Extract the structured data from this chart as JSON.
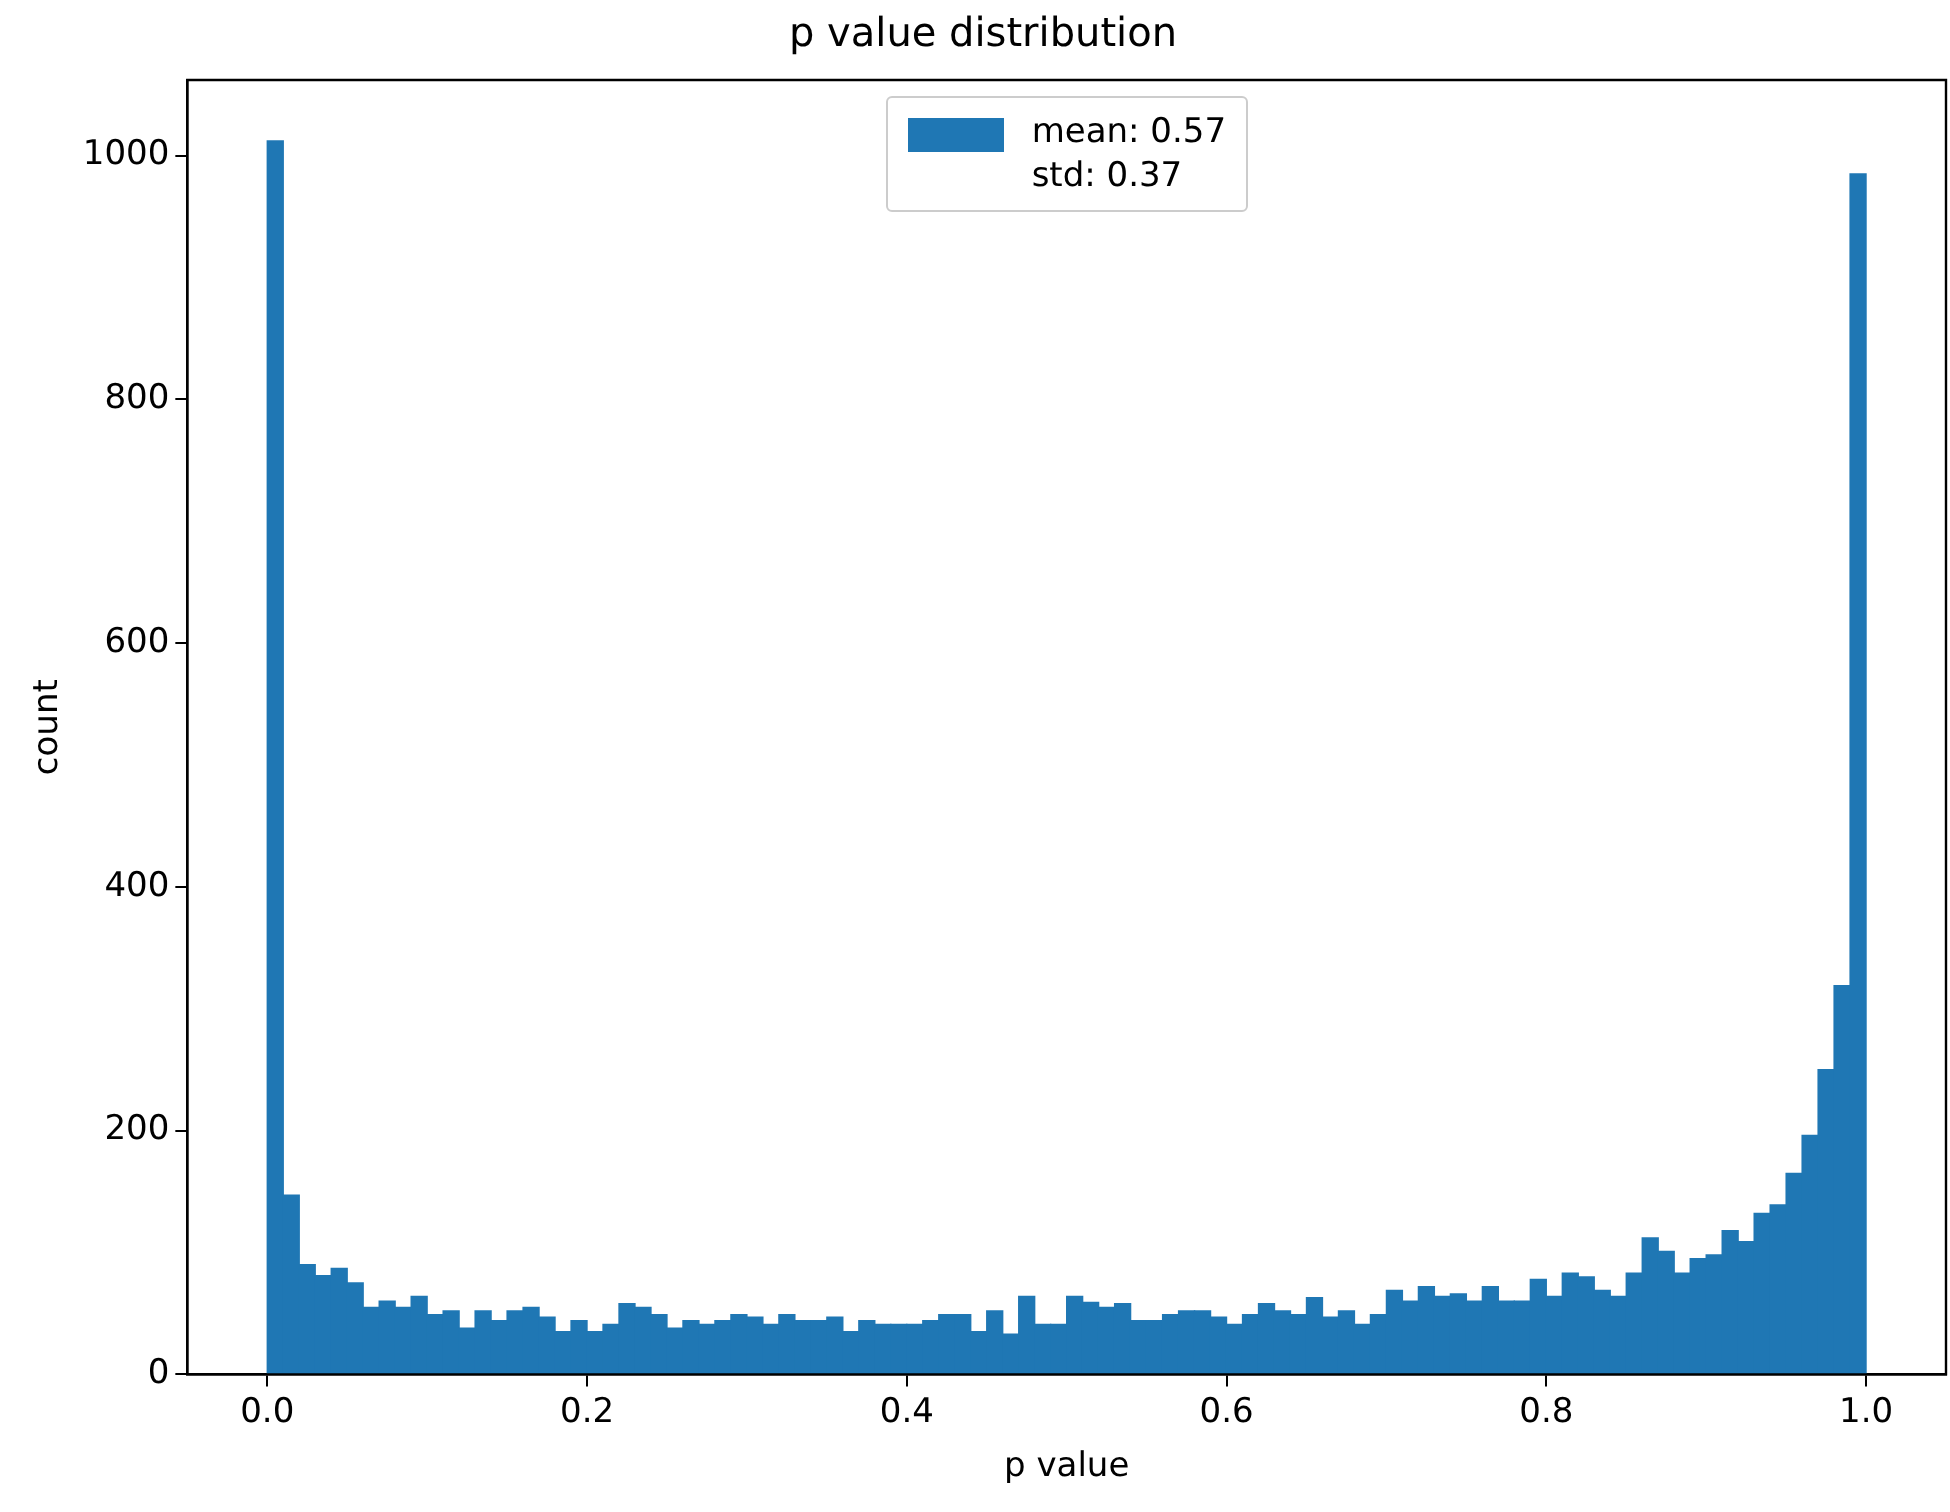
{
  "chart_data": {
    "type": "histogram",
    "title": "p value distribution",
    "xlabel": "p value",
    "ylabel": "count",
    "bins": [
      0,
      0.01,
      0.02,
      0.03,
      0.04,
      0.05,
      0.06,
      0.07,
      0.08,
      0.09,
      0.1,
      0.11,
      0.12,
      0.13,
      0.14,
      0.15,
      0.16,
      0.17,
      0.18,
      0.19,
      0.2,
      0.21,
      0.22,
      0.23,
      0.24,
      0.25,
      0.26,
      0.27,
      0.28,
      0.29,
      0.3,
      0.31,
      0.32,
      0.33,
      0.34,
      0.35,
      0.36,
      0.37,
      0.38,
      0.39,
      0.4,
      0.41,
      0.42,
      0.43,
      0.44,
      0.45,
      0.46,
      0.47,
      0.48,
      0.49,
      0.5,
      0.51,
      0.52,
      0.53,
      0.54,
      0.55,
      0.56,
      0.57,
      0.58,
      0.59,
      0.6,
      0.61,
      0.62,
      0.63,
      0.64,
      0.65,
      0.66,
      0.67,
      0.68,
      0.69,
      0.7,
      0.71,
      0.72,
      0.73,
      0.74,
      0.75,
      0.76,
      0.77,
      0.78,
      0.79,
      0.8,
      0.81,
      0.82,
      0.83,
      0.84,
      0.85,
      0.86,
      0.87,
      0.88,
      0.89,
      0.9,
      0.91,
      0.92,
      0.93,
      0.94,
      0.95,
      0.96,
      0.97,
      0.98,
      0.99,
      1
    ],
    "series": [
      {
        "name": "mean: 0.57\nstd: 0.37",
        "color": "#1f77b4",
        "values": [
          1012,
          147,
          90,
          81,
          87,
          75,
          55,
          60,
          55,
          64,
          49,
          52,
          38,
          52,
          44,
          52,
          55,
          47,
          35,
          44,
          35,
          41,
          58,
          55,
          49,
          38,
          44,
          41,
          44,
          49,
          47,
          41,
          49,
          44,
          44,
          47,
          35,
          44,
          41,
          41,
          41,
          44,
          49,
          49,
          35,
          52,
          33,
          64,
          41,
          41,
          64,
          59,
          55,
          58,
          44,
          44,
          49,
          52,
          52,
          47,
          41,
          49,
          58,
          52,
          49,
          63,
          47,
          52,
          41,
          49,
          69,
          60,
          72,
          64,
          66,
          60,
          72,
          60,
          60,
          78,
          64,
          83,
          80,
          69,
          64,
          83,
          112,
          101,
          83,
          95,
          98,
          118,
          109,
          132,
          139,
          165,
          196,
          250,
          319,
          985
        ]
      }
    ],
    "xlim": [
      -0.05,
      1.05
    ],
    "xticks": [
      {
        "value": 0,
        "label": "0.0"
      },
      {
        "value": 0.2,
        "label": "0.2"
      },
      {
        "value": 0.4,
        "label": "0.4"
      },
      {
        "value": 0.6,
        "label": "0.6"
      },
      {
        "value": 0.8,
        "label": "0.8"
      },
      {
        "value": 1,
        "label": "1.0"
      }
    ],
    "ylim": [
      0,
      1062
    ],
    "yticks": [
      0,
      200,
      400,
      600,
      800,
      1000
    ],
    "grid": false,
    "legend": "top"
  }
}
